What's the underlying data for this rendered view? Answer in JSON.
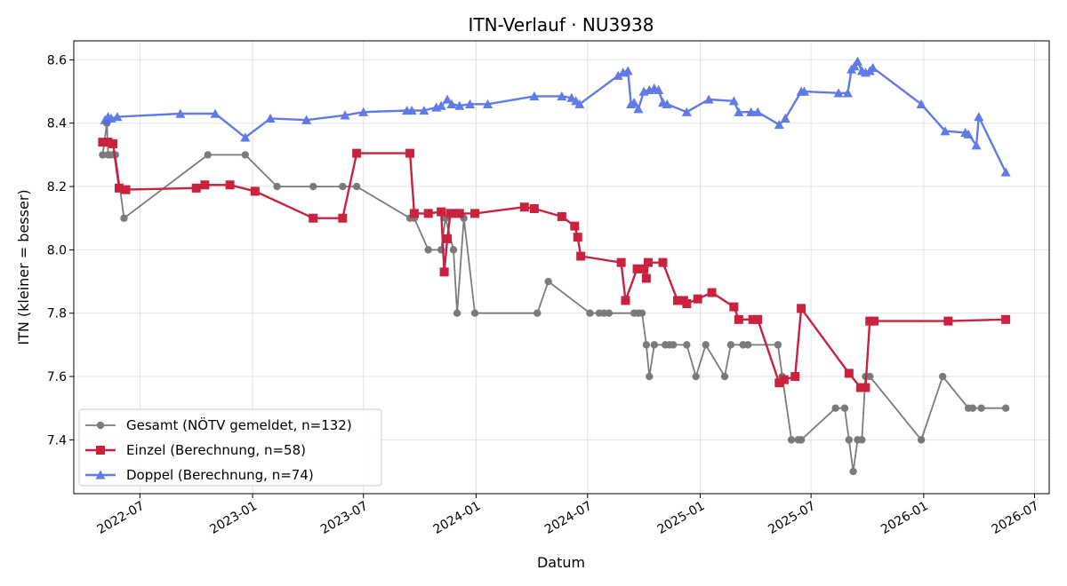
{
  "chart_data": {
    "type": "line",
    "title": "ITN-Verlauf · NU3938",
    "xlabel": "Datum",
    "ylabel": "ITN  (kleiner = besser)",
    "xlim": [
      "2022-03-15",
      "2026-07-25"
    ],
    "ylim": [
      7.23,
      8.66
    ],
    "x_ticks": [
      "2022-07",
      "2023-01",
      "2023-07",
      "2024-01",
      "2024-07",
      "2025-01",
      "2025-07",
      "2026-01",
      "2026-07"
    ],
    "y_ticks": [
      7.4,
      7.6,
      7.8,
      8.0,
      8.2,
      8.4,
      8.6
    ],
    "grid": true,
    "legend_position": "lower-left",
    "series": [
      {
        "name": "Gesamt (NÖTV gemeldet, n=132)",
        "color": "#444444",
        "marker": "circle",
        "x": [
          "2022-05-01",
          "2022-05-08",
          "2022-05-10",
          "2022-05-15",
          "2022-05-22",
          "2022-06-05",
          "2022-10-20",
          "2022-12-20",
          "2023-02-10",
          "2023-04-10",
          "2023-05-28",
          "2023-06-20",
          "2023-09-15",
          "2023-09-22",
          "2023-10-15",
          "2023-11-05",
          "2023-11-12",
          "2023-11-25",
          "2023-12-01",
          "2023-12-12",
          "2023-12-30",
          "2024-04-10",
          "2024-04-28",
          "2024-07-05",
          "2024-07-20",
          "2024-07-28",
          "2024-08-05",
          "2024-09-15",
          "2024-09-22",
          "2024-09-28",
          "2024-10-05",
          "2024-10-10",
          "2024-10-18",
          "2024-11-05",
          "2024-11-12",
          "2024-11-18",
          "2024-12-10",
          "2024-12-25",
          "2025-01-10",
          "2025-02-10",
          "2025-02-20",
          "2025-03-12",
          "2025-03-20",
          "2025-05-08",
          "2025-05-15",
          "2025-05-30",
          "2025-06-10",
          "2025-06-15",
          "2025-08-10",
          "2025-08-25",
          "2025-09-01",
          "2025-09-08",
          "2025-09-15",
          "2025-09-22",
          "2025-09-28",
          "2025-10-05",
          "2025-12-28",
          "2026-02-01",
          "2026-03-15",
          "2026-03-22",
          "2026-04-05",
          "2026-05-15"
        ],
        "values": [
          8.3,
          8.4,
          8.3,
          8.3,
          8.3,
          8.1,
          8.3,
          8.3,
          8.2,
          8.2,
          8.2,
          8.2,
          8.1,
          8.1,
          8.0,
          8.0,
          8.1,
          8.0,
          7.8,
          8.1,
          7.8,
          7.8,
          7.9,
          7.8,
          7.8,
          7.8,
          7.8,
          7.8,
          7.8,
          7.8,
          7.7,
          7.6,
          7.7,
          7.7,
          7.7,
          7.7,
          7.7,
          7.6,
          7.7,
          7.6,
          7.7,
          7.7,
          7.7,
          7.7,
          7.6,
          7.4,
          7.4,
          7.4,
          7.5,
          7.5,
          7.4,
          7.3,
          7.4,
          7.4,
          7.6,
          7.6,
          7.4,
          7.6,
          7.5,
          7.5,
          7.5,
          7.5
        ]
      },
      {
        "name": "Einzel (Berechnung, n=58)",
        "color": "#c8223f",
        "marker": "square",
        "x": [
          "2022-05-01",
          "2022-05-10",
          "2022-05-18",
          "2022-05-28",
          "2022-06-08",
          "2022-10-01",
          "2022-10-15",
          "2022-11-25",
          "2023-01-05",
          "2023-04-10",
          "2023-05-28",
          "2023-06-20",
          "2023-09-15",
          "2023-09-22",
          "2023-10-15",
          "2023-11-05",
          "2023-11-10",
          "2023-11-15",
          "2023-11-20",
          "2023-11-28",
          "2023-12-05",
          "2023-12-30",
          "2024-03-20",
          "2024-04-05",
          "2024-05-20",
          "2024-06-10",
          "2024-06-15",
          "2024-06-20",
          "2024-08-25",
          "2024-09-01",
          "2024-09-20",
          "2024-09-28",
          "2024-10-05",
          "2024-10-08",
          "2024-11-01",
          "2024-11-25",
          "2024-12-05",
          "2024-12-10",
          "2024-12-28",
          "2025-01-20",
          "2025-02-25",
          "2025-03-05",
          "2025-03-28",
          "2025-04-05",
          "2025-05-10",
          "2025-05-18",
          "2025-06-05",
          "2025-06-15",
          "2025-09-01",
          "2025-09-20",
          "2025-09-28",
          "2025-10-05",
          "2025-10-12",
          "2026-02-10",
          "2026-05-15"
        ],
        "values": [
          8.34,
          8.34,
          8.335,
          8.195,
          8.19,
          8.195,
          8.205,
          8.205,
          8.185,
          8.1,
          8.1,
          8.305,
          8.305,
          8.115,
          8.115,
          8.12,
          7.93,
          8.035,
          8.115,
          8.115,
          8.115,
          8.115,
          8.135,
          8.13,
          8.105,
          8.075,
          8.04,
          7.98,
          7.96,
          7.84,
          7.94,
          7.94,
          7.91,
          7.96,
          7.96,
          7.84,
          7.84,
          7.83,
          7.845,
          7.865,
          7.82,
          7.78,
          7.78,
          7.78,
          7.58,
          7.59,
          7.6,
          7.815,
          7.61,
          7.565,
          7.565,
          7.775,
          7.775,
          7.775,
          7.78
        ]
      },
      {
        "name": "Doppel (Berechnung, n=74)",
        "color": "#4f6ce6",
        "marker": "triangle",
        "x": [
          "2022-05-05",
          "2022-05-10",
          "2022-05-15",
          "2022-05-25",
          "2022-09-05",
          "2022-11-01",
          "2022-12-20",
          "2023-01-30",
          "2023-03-30",
          "2023-06-01",
          "2023-07-01",
          "2023-09-10",
          "2023-09-18",
          "2023-10-08",
          "2023-10-28",
          "2023-11-05",
          "2023-11-15",
          "2023-11-22",
          "2023-12-05",
          "2023-12-22",
          "2024-01-20",
          "2024-04-05",
          "2024-05-20",
          "2024-06-05",
          "2024-06-12",
          "2024-06-18",
          "2024-08-20",
          "2024-08-28",
          "2024-09-05",
          "2024-09-10",
          "2024-09-15",
          "2024-09-22",
          "2024-10-01",
          "2024-10-10",
          "2024-10-18",
          "2024-10-25",
          "2024-11-01",
          "2024-11-08",
          "2024-12-10",
          "2025-01-15",
          "2025-02-25",
          "2025-03-05",
          "2025-03-25",
          "2025-04-05",
          "2025-05-10",
          "2025-05-20",
          "2025-06-15",
          "2025-06-20",
          "2025-08-15",
          "2025-08-30",
          "2025-09-05",
          "2025-09-10",
          "2025-09-15",
          "2025-09-22",
          "2025-09-28",
          "2025-10-05",
          "2025-10-10",
          "2025-12-28",
          "2026-02-05",
          "2026-03-10",
          "2026-03-15",
          "2026-03-28",
          "2026-04-01",
          "2026-05-15"
        ],
        "values": [
          8.41,
          8.42,
          8.415,
          8.42,
          8.43,
          8.43,
          8.355,
          8.415,
          8.41,
          8.425,
          8.435,
          8.44,
          8.44,
          8.44,
          8.45,
          8.455,
          8.475,
          8.46,
          8.455,
          8.46,
          8.46,
          8.485,
          8.485,
          8.48,
          8.47,
          8.46,
          8.55,
          8.56,
          8.565,
          8.46,
          8.465,
          8.445,
          8.5,
          8.505,
          8.51,
          8.505,
          8.465,
          8.46,
          8.435,
          8.475,
          8.47,
          8.435,
          8.435,
          8.435,
          8.395,
          8.415,
          8.5,
          8.5,
          8.495,
          8.495,
          8.57,
          8.58,
          8.595,
          8.565,
          8.56,
          8.565,
          8.575,
          8.46,
          8.375,
          8.37,
          8.365,
          8.33,
          8.42,
          8.245
        ]
      }
    ]
  }
}
